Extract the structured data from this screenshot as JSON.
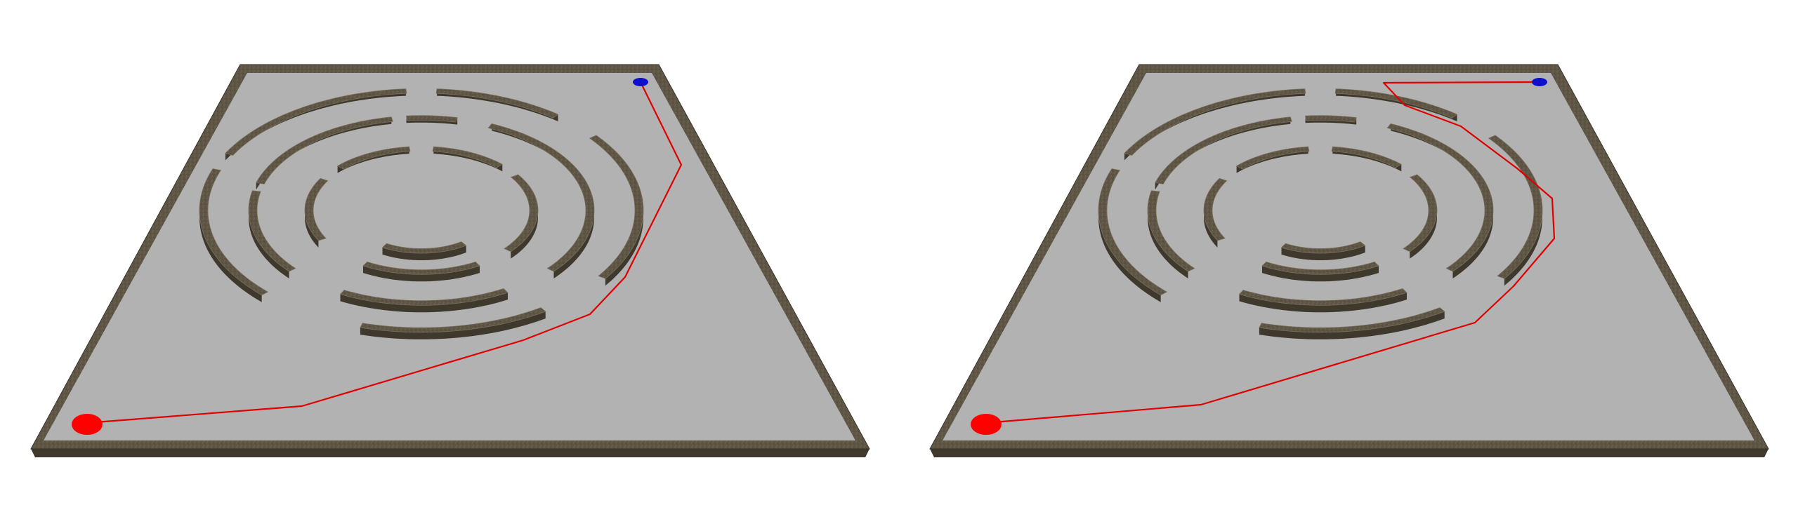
{
  "colors": {
    "background": "#ffffff",
    "floor": "#b2b2b2",
    "wall_top": "#5e5545",
    "wall_side": "#3e382d",
    "wall_edge": "#7a6f5c",
    "path": "#e00000",
    "start_marker": "#ff0000",
    "goal_marker": "#1010cc"
  },
  "panels": [
    {
      "id": "left",
      "description_icon": "maze-path-direct"
    },
    {
      "id": "right",
      "description_icon": "maze-path-detour"
    }
  ]
}
